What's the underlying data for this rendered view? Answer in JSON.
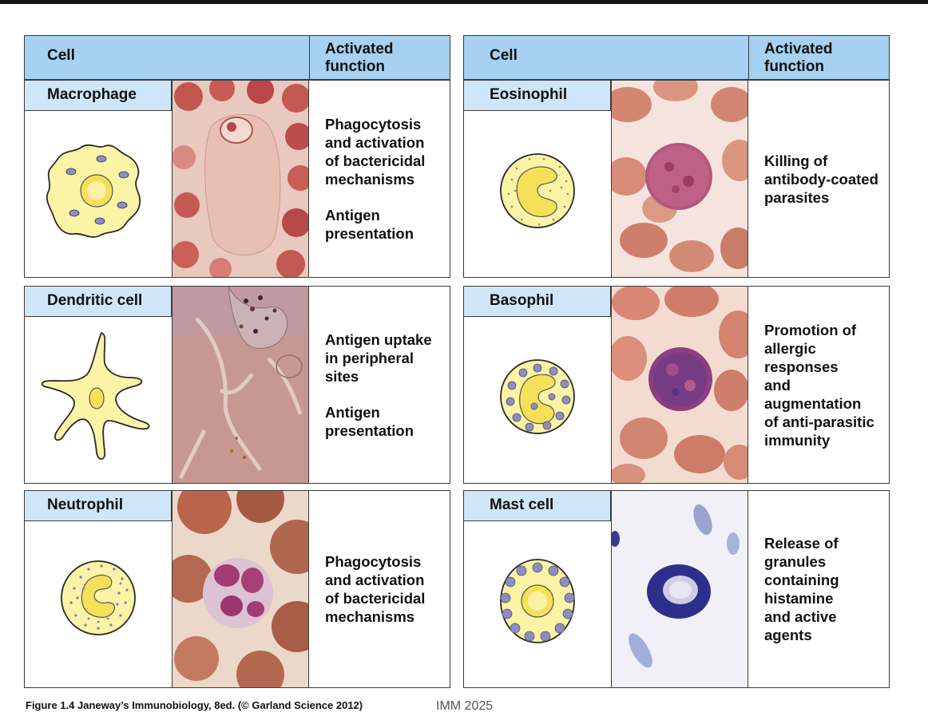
{
  "header": {
    "cell_label": "Cell",
    "function_label": "Activated\nfunction"
  },
  "cells": [
    {
      "name": "Macrophage",
      "functions": [
        "Phagocytosis\nand activation\nof bactericidal\nmechanisms",
        "Antigen\npresentation"
      ]
    },
    {
      "name": "Dendritic cell",
      "functions": [
        "Antigen uptake\nin peripheral\nsites",
        "Antigen\npresentation"
      ]
    },
    {
      "name": "Neutrophil",
      "functions": [
        "Phagocytosis\nand activation\nof bactericidal\nmechanisms"
      ]
    },
    {
      "name": "Eosinophil",
      "functions": [
        "Killing of\nantibody-coated\nparasites"
      ]
    },
    {
      "name": "Basophil",
      "functions": [
        "Promotion of\nallergic responses\nand augmentation\nof anti-parasitic\nimmunity"
      ]
    },
    {
      "name": "Mast cell",
      "functions": [
        "Release of\ngranules\ncontaining\nhistamine\nand active\nagents"
      ]
    }
  ],
  "caption": "Figure 1.4  Janeway’s Immunobiology, 8ed. (© Garland Science 2012)",
  "footer": "IMM 2025",
  "colors": {
    "header_blue": "#a6d1f0",
    "name_tab_blue": "#cfe6f8",
    "cell_yellow": "#fbf3a6",
    "nucleus_yellow": "#f5e05a",
    "granule_purple": "#8d8cc4"
  }
}
